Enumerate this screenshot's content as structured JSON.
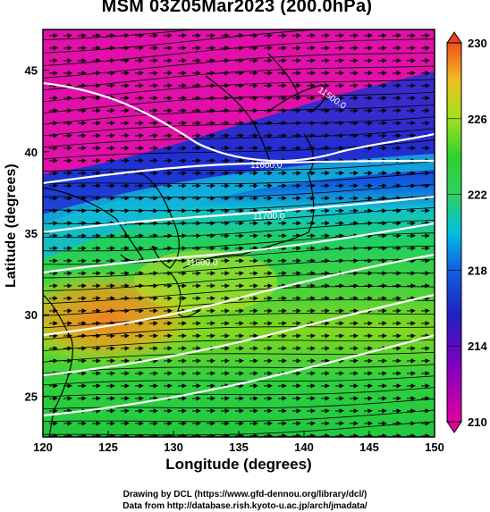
{
  "title": "MSM 03Z05Mar2023 (200.0hPa)",
  "xlabel": "Longitude (degrees)",
  "ylabel": "Latitude  (degrees)",
  "credits": [
    "Drawing by DCL (https://www.gfd-dennou.org/library/dcl/)",
    "Data from http://database.rish.kyoto-u.ac.jp/arch/jmadata/"
  ],
  "map": {
    "lon_range": [
      120,
      150
    ],
    "lat_range": [
      22.5,
      47.5
    ],
    "x_ticks": [
      "120",
      "125",
      "130",
      "135",
      "140",
      "145",
      "150"
    ],
    "y_ticks": [
      "25",
      "30",
      "35",
      "40",
      "45"
    ],
    "wind_vectors": "arrows",
    "contour_labels": [
      "11500.0",
      "11600.0",
      "11700.0",
      "11800.0"
    ]
  },
  "colorbar": {
    "ticks": [
      "210",
      "214",
      "218",
      "222",
      "226",
      "230"
    ],
    "range": [
      210,
      230
    ],
    "colors": [
      "#e000a0",
      "#2020c0",
      "#00c0e0",
      "#30d030",
      "#d0e020",
      "#f08020"
    ]
  }
}
